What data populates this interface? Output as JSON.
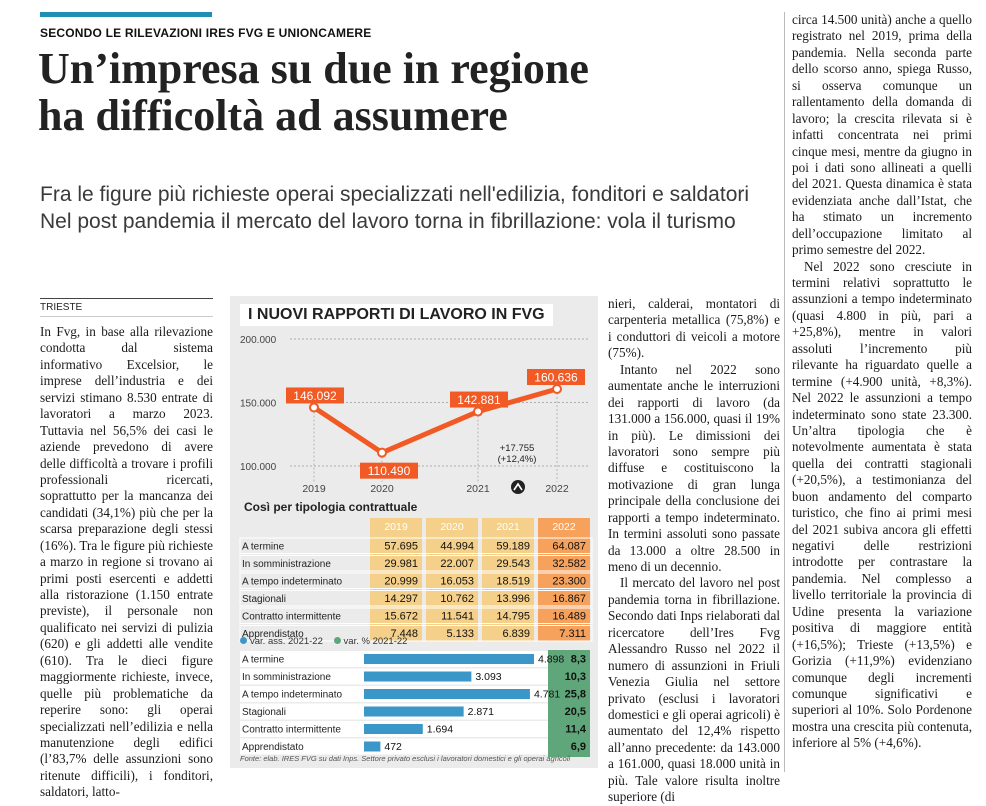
{
  "kicker": "SECONDO LE RILEVAZIONI IRES FVG E UNIONCAMERE",
  "headline": {
    "line1": "Un’impresa su due in regione",
    "line2": "ha difficoltà ad assumere"
  },
  "deck": {
    "line1": "Fra le figure più richieste operai specializzati nell'edilizia, fonditori e saldatori",
    "line2": "Nel post pandemia il mercato del lavoro torna in fibrillazione: vola il turismo"
  },
  "dateline": "TRIESTE",
  "col1": {
    "p1": "In Fvg, in base alla rilevazione condotta dal sistema informativo Excelsior, le imprese dell’industria e dei servizi stimano 8.530 entrate di lavoratori a marzo 2023. Tuttavia nel 56,5% dei casi le aziende prevedono di avere delle difficoltà a trovare i profili professionali ricercati, soprattutto per la mancanza dei candidati (34,1%) più che per la scarsa preparazione degli stessi (16%). Tra le figure più richieste a marzo in regione si trovano ai primi posti esercenti e addetti alla ristorazione (1.150 entrate previste), il personale non qualificato nei servizi di pulizia (620) e gli addetti alle vendite (610). Tra le dieci figure maggiormente richieste, invece, quelle più problematiche da reperire sono: gli operai specializzati nell’edilizia e nella manutenzione degli edifici (l’83,7% delle assunzioni sono ritenute difficili), i fonditori, saldatori, latto-"
  },
  "col3": {
    "p1": "nieri, calderai, montatori di carpenteria metallica (75,8%) e i conduttori di veicoli a motore (75%).",
    "p2": "Intanto nel 2022 sono aumentate anche le interruzioni dei rapporti di lavoro (da 131.000 a 156.000, quasi il 19% in più). Le dimissioni dei lavoratori sono sempre più diffuse e costituiscono la motivazione di gran lunga principale della conclusione dei rapporti a tempo indeterminato. In termini assoluti sono passate da 13.000 a oltre 28.500 in meno di un decennio.",
    "p3": "Il mercato del lavoro nel post pandemia torna in fibrillazione. Secondo dati Inps rielaborati dal ricercatore dell’Ires Fvg Alessandro Russo nel 2022 il numero di assunzioni in Friuli Venezia Giulia nel settore privato (esclusi i lavoratori domestici e gli operai agricoli) è aumentato del 12,4% rispetto all’anno precedente: da 143.000 a 161.000, quasi 18.000 unità in più. Tale valore risulta inoltre superiore (di"
  },
  "col4": {
    "p1": "circa 14.500 unità) anche a quello registrato nel 2019, prima della pandemia. Nella seconda parte dello scorso anno, spiega Russo, si osserva comunque un rallentamento della domanda di lavoro; la crescita rilevata si è infatti concentrata nei primi cinque mesi, mentre da giugno in poi i dati sono allineati a quelli del 2021. Questa dinamica è stata evidenziata anche dall’Istat, che ha stimato un incremento dell’occupazione limitato al primo semestre del 2022.",
    "p2": "Nel 2022 sono cresciute in termini relativi soprattutto le assunzioni a tempo indeterminato (quasi 4.800 in più, pari a +25,8%), mentre in valori assoluti l’incremento più rilevante ha riguardato quelle a termine (+4.900 unità, +8,3%). Nel 2022 le assunzioni a tempo indeterminato sono state 23.300. Un’altra tipologia che è notevolmente aumentata è stata quella dei contratti stagionali (+20,5%), a testimonianza del buon andamento del comparto turistico, che fino ai primi mesi del 2021 subiva ancora gli effetti negativi delle restrizioni introdotte per contrastare la pandemia. Nel complesso a livello territoriale la provincia di Udine presenta la variazione positiva di maggiore entità (+16,5%); Trieste (+13,5%) e Gorizia (+11,9%) evidenziano comunque degli incrementi comunque significativi e superiori al 10%. Solo Pordenone mostra una crescita più contenuta, inferiore al 5% (+4,6%)."
  },
  "chart_data": {
    "type": "line",
    "title": "I NUOVI RAPPORTI DI LAVORO IN FVG",
    "x": [
      "2019",
      "2020",
      "2021",
      "2022"
    ],
    "values": [
      146092,
      110490,
      142881,
      160636
    ],
    "value_labels": [
      "146.092",
      "110.490",
      "142.881",
      "160.636"
    ],
    "y_ticks": [
      "200.000",
      "150.000",
      "100.000"
    ],
    "ylim": [
      100000,
      200000
    ],
    "annotation": "+17.755 (+12,4%)",
    "line_color": "#f15a24",
    "table_title": "Così per tipologia contrattuale",
    "table_years": [
      "2019",
      "2020",
      "2021",
      "2022"
    ],
    "table_rows": [
      {
        "label": "A termine",
        "values": [
          "57.695",
          "44.994",
          "59.189",
          "64.087"
        ]
      },
      {
        "label": "In somministrazione",
        "values": [
          "29.981",
          "22.007",
          "29.543",
          "32.582"
        ]
      },
      {
        "label": "A tempo indeterminato",
        "values": [
          "20.999",
          "16.053",
          "18.519",
          "23.300"
        ]
      },
      {
        "label": "Stagionali",
        "values": [
          "14.297",
          "10.762",
          "13.996",
          "16.867"
        ]
      },
      {
        "label": "Contratto intermittente",
        "values": [
          "15.672",
          "11.541",
          "14.795",
          "16.489"
        ]
      },
      {
        "label": "Apprendistato",
        "values": [
          "7.448",
          "5.133",
          "6.839",
          "7.311"
        ]
      }
    ],
    "legend": {
      "abs": "var. ass. 2021-22",
      "pct": "var. % 2021-22"
    },
    "bars": [
      {
        "label": "A termine",
        "abs": 4898,
        "abs_label": "4.898",
        "pct": "8,3"
      },
      {
        "label": "In somministrazione",
        "abs": 3093,
        "abs_label": "3.093",
        "pct": "10,3"
      },
      {
        "label": "A tempo indeterminato",
        "abs": 4781,
        "abs_label": "4.781",
        "pct": "25,8"
      },
      {
        "label": "Stagionali",
        "abs": 2871,
        "abs_label": "2.871",
        "pct": "20,5"
      },
      {
        "label": "Contratto intermittente",
        "abs": 1694,
        "abs_label": "1.694",
        "pct": "11,4"
      },
      {
        "label": "Apprendistato",
        "abs": 472,
        "abs_label": "472",
        "pct": "6,9"
      }
    ],
    "bar_color": "#3c97c9",
    "pct_color": "#5fa77a",
    "source": "Fonte: elab. IRES FVG su dati Inps. Settore privato esclusi i lavoratori domestici e gli operai agricoli"
  }
}
